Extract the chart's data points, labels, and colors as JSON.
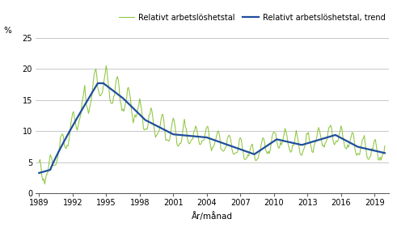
{
  "ylabel": "%",
  "xlabel": "År/månad",
  "ylim": [
    0,
    25
  ],
  "yticks": [
    0,
    5,
    10,
    15,
    20,
    25
  ],
  "xticks": [
    1989,
    1992,
    1995,
    1998,
    2001,
    2004,
    2007,
    2010,
    2013,
    2016,
    2019
  ],
  "legend_raw": "Relativt arbetslöshetstal",
  "legend_trend": "Relativt arbetslöshetstal, trend",
  "color_raw": "#8dc63f",
  "color_trend": "#1f4e9c",
  "bg_color": "#ffffff",
  "grid_color": "#bfbfbf",
  "xlim_left": 1988.7,
  "xlim_right": 2020.3
}
